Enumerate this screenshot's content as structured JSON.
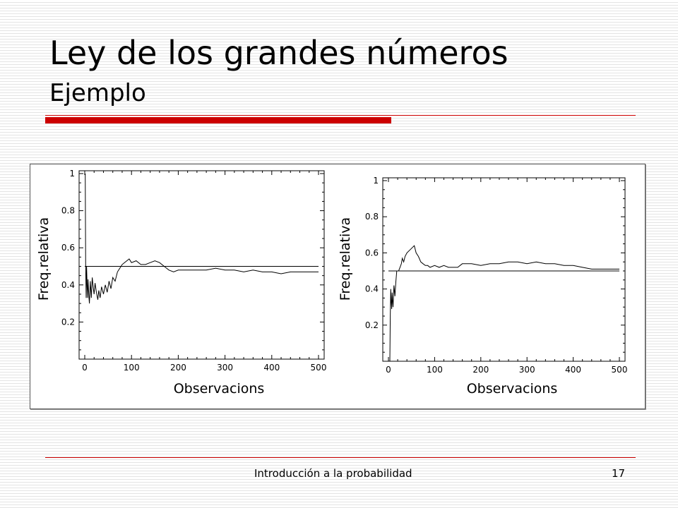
{
  "slide": {
    "title": "Ley de los grandes números",
    "subtitle": "Ejemplo",
    "footer": "Introducción a la probabilidad",
    "page_number": "17",
    "accent_color": "#cc0000"
  },
  "chart_data": [
    {
      "type": "line",
      "xlabel": "Observacions",
      "ylabel": "Freq.relativa",
      "xlim": [
        0,
        500
      ],
      "ylim": [
        0,
        1
      ],
      "xticks": [
        0,
        100,
        200,
        300,
        400,
        500
      ],
      "yticks": [
        0.2,
        0.4,
        0.6,
        0.8,
        1
      ],
      "reference_line": 0.5,
      "series": [
        {
          "x": [
            1,
            2,
            3,
            4,
            5,
            6,
            7,
            8,
            9,
            10,
            12,
            14,
            16,
            18,
            20,
            22,
            25,
            28,
            30,
            33,
            36,
            40,
            44,
            48,
            52,
            56,
            60,
            65,
            70,
            75,
            80,
            85,
            90,
            95,
            100,
            110,
            120,
            130,
            140,
            150,
            160,
            170,
            180,
            190,
            200,
            220,
            240,
            260,
            280,
            300,
            320,
            340,
            360,
            380,
            400,
            420,
            440,
            460,
            480,
            500
          ],
          "y": [
            1,
            0.5,
            0.33,
            0.5,
            0.4,
            0.33,
            0.43,
            0.38,
            0.33,
            0.3,
            0.42,
            0.33,
            0.44,
            0.39,
            0.35,
            0.41,
            0.36,
            0.32,
            0.37,
            0.33,
            0.39,
            0.35,
            0.4,
            0.36,
            0.42,
            0.38,
            0.44,
            0.42,
            0.47,
            0.49,
            0.51,
            0.52,
            0.53,
            0.54,
            0.52,
            0.53,
            0.51,
            0.51,
            0.52,
            0.53,
            0.52,
            0.5,
            0.48,
            0.47,
            0.48,
            0.48,
            0.48,
            0.48,
            0.49,
            0.48,
            0.48,
            0.47,
            0.48,
            0.47,
            0.47,
            0.46,
            0.47,
            0.47,
            0.47,
            0.47
          ]
        }
      ]
    },
    {
      "type": "line",
      "xlabel": "Observacions",
      "ylabel": "Freq.relativa",
      "xlim": [
        0,
        500
      ],
      "ylim": [
        0,
        1
      ],
      "xticks": [
        0,
        100,
        200,
        300,
        400,
        500
      ],
      "yticks": [
        0.2,
        0.4,
        0.6,
        0.8,
        1
      ],
      "reference_line": 0.5,
      "series": [
        {
          "x": [
            1,
            2,
            3,
            4,
            5,
            6,
            7,
            8,
            9,
            10,
            12,
            14,
            16,
            18,
            20,
            22,
            25,
            28,
            30,
            33,
            36,
            40,
            44,
            48,
            52,
            56,
            60,
            65,
            70,
            75,
            80,
            85,
            90,
            100,
            110,
            120,
            130,
            140,
            150,
            160,
            180,
            200,
            220,
            240,
            260,
            280,
            300,
            320,
            340,
            360,
            380,
            400,
            420,
            440,
            460,
            480,
            500
          ],
          "y": [
            0,
            0,
            0,
            0.25,
            0.4,
            0.33,
            0.29,
            0.38,
            0.33,
            0.3,
            0.42,
            0.36,
            0.44,
            0.5,
            0.5,
            0.5,
            0.52,
            0.54,
            0.57,
            0.55,
            0.58,
            0.6,
            0.61,
            0.62,
            0.63,
            0.64,
            0.6,
            0.58,
            0.55,
            0.54,
            0.53,
            0.53,
            0.52,
            0.53,
            0.52,
            0.53,
            0.52,
            0.52,
            0.52,
            0.54,
            0.54,
            0.53,
            0.54,
            0.54,
            0.55,
            0.55,
            0.54,
            0.55,
            0.54,
            0.54,
            0.53,
            0.53,
            0.52,
            0.51,
            0.51,
            0.51,
            0.51
          ]
        }
      ]
    }
  ]
}
